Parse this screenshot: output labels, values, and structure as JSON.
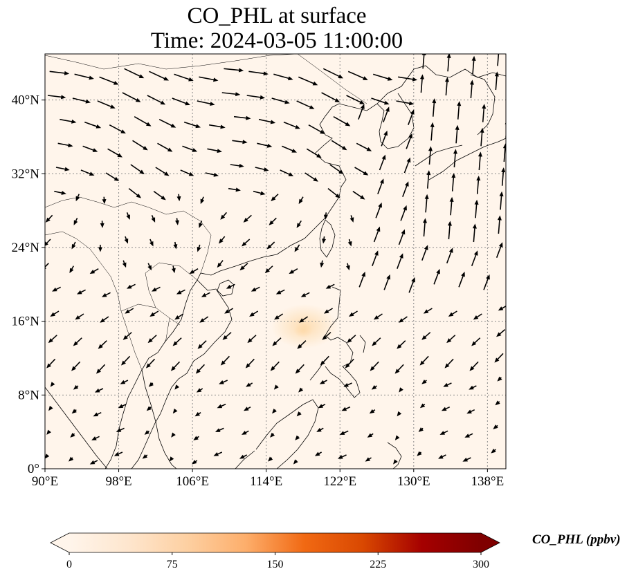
{
  "title_line1": "CO_PHL at surface",
  "title_line2": "Time: 2024-03-05 11:00:00",
  "map": {
    "lon_range": [
      90,
      140
    ],
    "lat_range": [
      0,
      45
    ],
    "lon_ticks": [
      {
        "value": 90,
        "label": "90°E"
      },
      {
        "value": 98,
        "label": "98°E"
      },
      {
        "value": 106,
        "label": "106°E"
      },
      {
        "value": 114,
        "label": "114°E"
      },
      {
        "value": 122,
        "label": "122°E"
      },
      {
        "value": 130,
        "label": "130°E"
      },
      {
        "value": 138,
        "label": "138°E"
      }
    ],
    "lat_ticks": [
      {
        "value": 0,
        "label": "0°"
      },
      {
        "value": 8,
        "label": "8°N"
      },
      {
        "value": 16,
        "label": "16°N"
      },
      {
        "value": 24,
        "label": "24°N"
      },
      {
        "value": 32,
        "label": "32°N"
      },
      {
        "value": 40,
        "label": "40°N"
      }
    ],
    "background_color": "#fff5eb",
    "plume_color": "#fdd9a8",
    "coastline_color": "#000000",
    "arrow_color": "#000000"
  },
  "colorbar": {
    "title": "CO_PHL (ppbv)",
    "min": 0,
    "max": 300,
    "ticks": [
      {
        "value": 0,
        "label": "0"
      },
      {
        "value": 75,
        "label": "75"
      },
      {
        "value": 150,
        "label": "150"
      },
      {
        "value": 225,
        "label": "225"
      },
      {
        "value": 300,
        "label": "300"
      }
    ],
    "colors": [
      "#fff5eb",
      "#fee6ce",
      "#fdd0a2",
      "#fdae6b",
      "#f16913",
      "#d94801",
      "#a50000",
      "#7f0000"
    ]
  }
}
